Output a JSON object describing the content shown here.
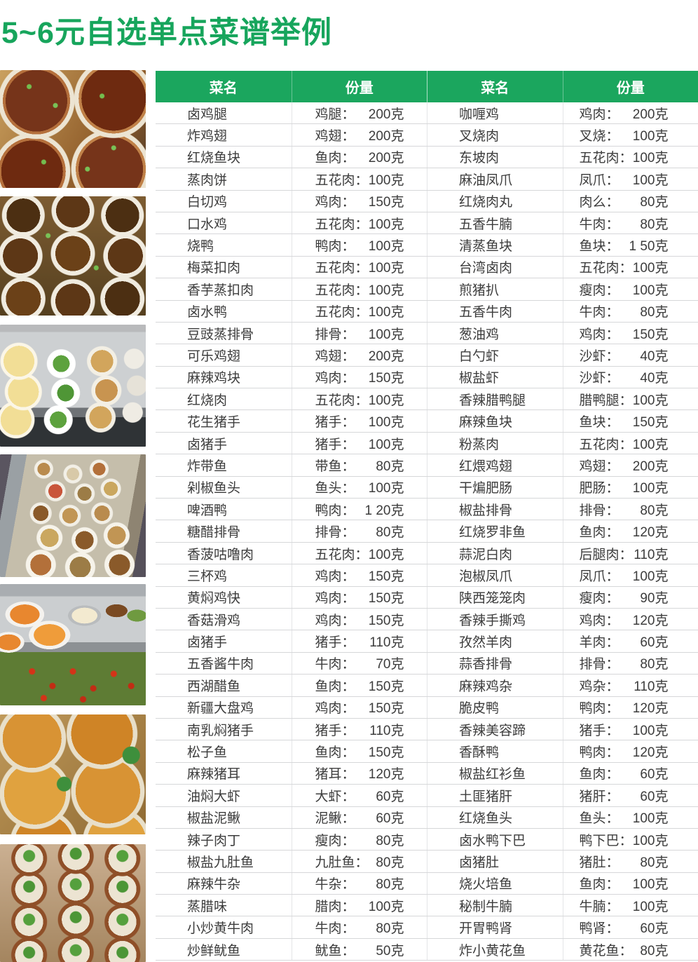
{
  "title": "5~6元自选单点菜谱举例",
  "colors": {
    "accent_green": "#1ba65e",
    "header_text": "#ffffff",
    "cell_text": "#3c3c3c"
  },
  "photos": [
    {
      "name": "photo-braised-pork-belly-bowls"
    },
    {
      "name": "photo-stacked-dish-bowls"
    },
    {
      "name": "photo-steamed-egg-counter"
    },
    {
      "name": "photo-bowl-display-counter"
    },
    {
      "name": "photo-cafeteria-dishes-counter"
    },
    {
      "name": "photo-braised-dish-bowls-closeup"
    },
    {
      "name": "photo-claypot-rice-rows"
    }
  ],
  "table": {
    "headers": [
      "菜名",
      "份量",
      "菜名",
      "份量"
    ],
    "rows": [
      {
        "d1": "卤鸡腿",
        "p1l": "鸡腿：",
        "p1v": "200克",
        "d2": "咖喱鸡",
        "p2l": "鸡肉：",
        "p2v": "200克"
      },
      {
        "d1": "炸鸡翅",
        "p1l": "鸡翅：",
        "p1v": "200克",
        "d2": "叉烧肉",
        "p2l": "叉烧：",
        "p2v": "100克"
      },
      {
        "d1": "红烧鱼块",
        "p1l": "鱼肉：",
        "p1v": "200克",
        "d2": "东坡肉",
        "p2l": "五花肉：",
        "p2v": "100克"
      },
      {
        "d1": "蒸肉饼",
        "p1l": "五花肉：",
        "p1v": "100克",
        "d2": "麻油凤爪",
        "p2l": "凤爪：",
        "p2v": "100克"
      },
      {
        "d1": "白切鸡",
        "p1l": "鸡肉：",
        "p1v": "150克",
        "d2": "红烧肉丸",
        "p2l": "肉么：",
        "p2v": "80克"
      },
      {
        "d1": "口水鸡",
        "p1l": "五花肉：",
        "p1v": "100克",
        "d2": "五香牛腩",
        "p2l": "牛肉：",
        "p2v": "80克"
      },
      {
        "d1": "烧鸭",
        "p1l": "鸭肉：",
        "p1v": "100克",
        "d2": "清蒸鱼块",
        "p2l": "鱼块：",
        "p2v": "1 50克"
      },
      {
        "d1": "梅菜扣肉",
        "p1l": "五花肉：",
        "p1v": "100克",
        "d2": "台湾卤肉",
        "p2l": "五花肉：",
        "p2v": "100克"
      },
      {
        "d1": "香芋蒸扣肉",
        "p1l": "五花肉：",
        "p1v": "100克",
        "d2": "煎猪扒",
        "p2l": "瘦肉：",
        "p2v": "100克"
      },
      {
        "d1": "卤水鸭",
        "p1l": "五花肉：",
        "p1v": "100克",
        "d2": "五香牛肉",
        "p2l": "牛肉：",
        "p2v": "80克"
      },
      {
        "d1": "豆豉蒸排骨",
        "p1l": "排骨：",
        "p1v": "100克",
        "d2": "葱油鸡",
        "p2l": "鸡肉：",
        "p2v": "150克"
      },
      {
        "d1": "可乐鸡翅",
        "p1l": "鸡翅：",
        "p1v": "200克",
        "d2": "白勺虾",
        "p2l": "沙虾：",
        "p2v": "40克"
      },
      {
        "d1": "麻辣鸡块",
        "p1l": "鸡肉：",
        "p1v": "150克",
        "d2": "椒盐虾",
        "p2l": "沙虾：",
        "p2v": "40克"
      },
      {
        "d1": "红烧肉",
        "p1l": "五花肉：",
        "p1v": "100克",
        "d2": "香辣腊鸭腿",
        "p2l": "腊鸭腿：",
        "p2v": "100克"
      },
      {
        "d1": "花生猪手",
        "p1l": "猪手：",
        "p1v": "100克",
        "d2": "麻辣鱼块",
        "p2l": "鱼块：",
        "p2v": "150克"
      },
      {
        "d1": "卤猪手",
        "p1l": "猪手：",
        "p1v": "100克",
        "d2": "粉蒸肉",
        "p2l": "五花肉：",
        "p2v": "100克"
      },
      {
        "d1": "炸带鱼",
        "p1l": "带鱼：",
        "p1v": "80克",
        "d2": "红煨鸡翅",
        "p2l": "鸡翅：",
        "p2v": "200克"
      },
      {
        "d1": "剁椒鱼头",
        "p1l": "鱼头：",
        "p1v": "100克",
        "d2": "干煸肥肠",
        "p2l": "肥肠：",
        "p2v": "100克"
      },
      {
        "d1": "啤酒鸭",
        "p1l": "鸭肉：",
        "p1v": "1 20克",
        "d2": "椒盐排骨",
        "p2l": "排骨：",
        "p2v": "80克"
      },
      {
        "d1": "糖醋排骨",
        "p1l": "排骨：",
        "p1v": "80克",
        "d2": "红烧罗非鱼",
        "p2l": "鱼肉：",
        "p2v": "120克"
      },
      {
        "d1": "香菠咕噜肉",
        "p1l": "五花肉：",
        "p1v": "100克",
        "d2": "蒜泥白肉",
        "p2l": "后腿肉：",
        "p2v": "110克"
      },
      {
        "d1": "三杯鸡",
        "p1l": "鸡肉：",
        "p1v": "150克",
        "d2": "泡椒凤爪",
        "p2l": "凤爪：",
        "p2v": "100克"
      },
      {
        "d1": "黄焖鸡快",
        "p1l": "鸡肉：",
        "p1v": "150克",
        "d2": "陕西笼笼肉",
        "p2l": "瘦肉：",
        "p2v": "90克"
      },
      {
        "d1": "香菇滑鸡",
        "p1l": "鸡肉：",
        "p1v": "150克",
        "d2": "香辣手撕鸡",
        "p2l": "鸡肉：",
        "p2v": "120克"
      },
      {
        "d1": "卤猪手",
        "p1l": "猪手：",
        "p1v": "110克",
        "d2": "孜然羊肉",
        "p2l": "羊肉：",
        "p2v": "60克"
      },
      {
        "d1": "五香酱牛肉",
        "p1l": "牛肉：",
        "p1v": "70克",
        "d2": "蒜香排骨",
        "p2l": "排骨：",
        "p2v": "80克"
      },
      {
        "d1": "西湖醋鱼",
        "p1l": "鱼肉：",
        "p1v": "150克",
        "d2": "麻辣鸡杂",
        "p2l": "鸡杂：",
        "p2v": "110克"
      },
      {
        "d1": "新疆大盘鸡",
        "p1l": "鸡肉：",
        "p1v": "150克",
        "d2": "脆皮鸭",
        "p2l": "鸭肉：",
        "p2v": "120克"
      },
      {
        "d1": "南乳焖猪手",
        "p1l": "猪手：",
        "p1v": "110克",
        "d2": "香辣美容蹄",
        "p2l": "猪手：",
        "p2v": "100克"
      },
      {
        "d1": "松子鱼",
        "p1l": "鱼肉：",
        "p1v": "150克",
        "d2": "香酥鸭",
        "p2l": "鸭肉：",
        "p2v": "120克"
      },
      {
        "d1": "麻辣猪耳",
        "p1l": "猪耳：",
        "p1v": "120克",
        "d2": "椒盐红衫鱼",
        "p2l": "鱼肉：",
        "p2v": "60克"
      },
      {
        "d1": "油焖大虾",
        "p1l": "大虾：",
        "p1v": "60克",
        "d2": "土匪猪肝",
        "p2l": "猪肝：",
        "p2v": "60克"
      },
      {
        "d1": "椒盐泥鳅",
        "p1l": "泥鳅：",
        "p1v": "60克",
        "d2": "红烧鱼头",
        "p2l": "鱼头：",
        "p2v": "100克"
      },
      {
        "d1": "辣子肉丁",
        "p1l": "瘦肉：",
        "p1v": "80克",
        "d2": "卤水鸭下巴",
        "p2l": "鸭下巴：",
        "p2v": "100克"
      },
      {
        "d1": "椒盐九肚鱼",
        "p1l": "九肚鱼：",
        "p1v": "80克",
        "d2": "卤猪肚",
        "p2l": "猪肚：",
        "p2v": "80克"
      },
      {
        "d1": "麻辣牛杂",
        "p1l": "牛杂：",
        "p1v": "80克",
        "d2": "烧火培鱼",
        "p2l": "鱼肉：",
        "p2v": "100克"
      },
      {
        "d1": "蒸腊味",
        "p1l": "腊肉：",
        "p1v": "100克",
        "d2": "秘制牛腩",
        "p2l": "牛腩：",
        "p2v": "100克"
      },
      {
        "d1": "小炒黄牛肉",
        "p1l": "牛肉：",
        "p1v": "80克",
        "d2": "开胃鸭肾",
        "p2l": "鸭肾：",
        "p2v": "60克"
      },
      {
        "d1": "炒鲜鱿鱼",
        "p1l": "鱿鱼：",
        "p1v": "50克",
        "d2": "炸小黄花鱼",
        "p2l": "黄花鱼：",
        "p2v": "80克"
      }
    ]
  }
}
